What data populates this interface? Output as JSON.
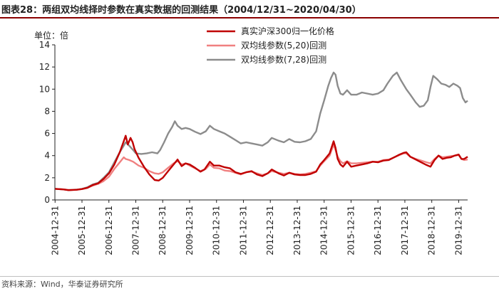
{
  "title": "图表28：两组双均线择时参数在真实数据的回测结果（2004/12/31~2020/04/30）",
  "source": "资料来源：Wind，华泰证券研究所",
  "chart_data": {
    "type": "line",
    "unit_label": "单位：倍",
    "ylim": [
      0,
      14
    ],
    "yticks": [
      0,
      2,
      4,
      6,
      8,
      10,
      12,
      14
    ],
    "xlim": [
      2004.99,
      2020.33
    ],
    "xticks": [
      "2004-12-31",
      "2005-12-31",
      "2006-12-31",
      "2007-12-31",
      "2008-12-31",
      "2009-12-31",
      "2010-12-31",
      "2011-12-31",
      "2012-12-31",
      "2013-12-31",
      "2014-12-31",
      "2015-12-31",
      "2016-12-31",
      "2017-12-31",
      "2018-12-31",
      "2019-12-31"
    ],
    "legend_position": "top-right",
    "series": [
      {
        "name": "真实沪深300归一化价格",
        "color": "#c00000",
        "width": 2.4,
        "points": [
          [
            2005.0,
            1.0
          ],
          [
            2005.3,
            0.95
          ],
          [
            2005.5,
            0.88
          ],
          [
            2005.8,
            0.92
          ],
          [
            2006.0,
            0.98
          ],
          [
            2006.2,
            1.1
          ],
          [
            2006.4,
            1.35
          ],
          [
            2006.6,
            1.5
          ],
          [
            2006.8,
            1.9
          ],
          [
            2007.0,
            2.4
          ],
          [
            2007.2,
            3.2
          ],
          [
            2007.4,
            4.3
          ],
          [
            2007.55,
            5.3
          ],
          [
            2007.62,
            5.8
          ],
          [
            2007.7,
            5.0
          ],
          [
            2007.8,
            5.6
          ],
          [
            2007.88,
            5.2
          ],
          [
            2007.95,
            4.6
          ],
          [
            2008.1,
            3.8
          ],
          [
            2008.3,
            3.0
          ],
          [
            2008.5,
            2.3
          ],
          [
            2008.7,
            1.8
          ],
          [
            2008.85,
            1.75
          ],
          [
            2009.0,
            2.0
          ],
          [
            2009.2,
            2.6
          ],
          [
            2009.4,
            3.2
          ],
          [
            2009.55,
            3.65
          ],
          [
            2009.7,
            3.05
          ],
          [
            2009.85,
            3.3
          ],
          [
            2010.0,
            3.2
          ],
          [
            2010.2,
            2.9
          ],
          [
            2010.4,
            2.55
          ],
          [
            2010.55,
            2.75
          ],
          [
            2010.75,
            3.45
          ],
          [
            2010.9,
            3.1
          ],
          [
            2011.1,
            3.1
          ],
          [
            2011.3,
            2.95
          ],
          [
            2011.5,
            2.85
          ],
          [
            2011.7,
            2.5
          ],
          [
            2011.9,
            2.35
          ],
          [
            2012.1,
            2.5
          ],
          [
            2012.3,
            2.6
          ],
          [
            2012.5,
            2.3
          ],
          [
            2012.7,
            2.15
          ],
          [
            2012.9,
            2.4
          ],
          [
            2013.05,
            2.75
          ],
          [
            2013.3,
            2.4
          ],
          [
            2013.5,
            2.2
          ],
          [
            2013.7,
            2.45
          ],
          [
            2013.9,
            2.3
          ],
          [
            2014.1,
            2.25
          ],
          [
            2014.3,
            2.25
          ],
          [
            2014.5,
            2.35
          ],
          [
            2014.7,
            2.55
          ],
          [
            2014.85,
            3.2
          ],
          [
            2015.0,
            3.6
          ],
          [
            2015.2,
            4.2
          ],
          [
            2015.35,
            5.3
          ],
          [
            2015.42,
            4.7
          ],
          [
            2015.5,
            3.7
          ],
          [
            2015.6,
            3.2
          ],
          [
            2015.7,
            3.0
          ],
          [
            2015.85,
            3.45
          ],
          [
            2016.0,
            3.0
          ],
          [
            2016.2,
            3.1
          ],
          [
            2016.4,
            3.2
          ],
          [
            2016.6,
            3.3
          ],
          [
            2016.8,
            3.45
          ],
          [
            2017.0,
            3.4
          ],
          [
            2017.2,
            3.55
          ],
          [
            2017.4,
            3.6
          ],
          [
            2017.6,
            3.85
          ],
          [
            2017.8,
            4.1
          ],
          [
            2017.95,
            4.25
          ],
          [
            2018.05,
            4.3
          ],
          [
            2018.2,
            3.9
          ],
          [
            2018.4,
            3.65
          ],
          [
            2018.6,
            3.4
          ],
          [
            2018.8,
            3.15
          ],
          [
            2018.95,
            3.0
          ],
          [
            2019.1,
            3.6
          ],
          [
            2019.25,
            4.0
          ],
          [
            2019.4,
            3.7
          ],
          [
            2019.55,
            3.8
          ],
          [
            2019.7,
            3.85
          ],
          [
            2019.85,
            4.0
          ],
          [
            2020.0,
            4.1
          ],
          [
            2020.1,
            3.7
          ],
          [
            2020.2,
            3.7
          ],
          [
            2020.33,
            3.9
          ]
        ]
      },
      {
        "name": "双均线参数(5,20)回测",
        "color": "#f08080",
        "width": 2.4,
        "points": [
          [
            2005.0,
            1.0
          ],
          [
            2005.3,
            0.95
          ],
          [
            2005.5,
            0.9
          ],
          [
            2005.8,
            0.92
          ],
          [
            2006.0,
            0.98
          ],
          [
            2006.2,
            1.1
          ],
          [
            2006.4,
            1.3
          ],
          [
            2006.6,
            1.45
          ],
          [
            2006.8,
            1.7
          ],
          [
            2007.0,
            2.1
          ],
          [
            2007.2,
            2.8
          ],
          [
            2007.4,
            3.4
          ],
          [
            2007.55,
            3.85
          ],
          [
            2007.62,
            3.7
          ],
          [
            2007.75,
            3.6
          ],
          [
            2007.9,
            3.45
          ],
          [
            2008.1,
            3.1
          ],
          [
            2008.3,
            2.9
          ],
          [
            2008.5,
            2.6
          ],
          [
            2008.7,
            2.4
          ],
          [
            2008.85,
            2.35
          ],
          [
            2009.0,
            2.5
          ],
          [
            2009.2,
            2.9
          ],
          [
            2009.4,
            3.3
          ],
          [
            2009.55,
            3.5
          ],
          [
            2009.7,
            3.2
          ],
          [
            2009.85,
            3.3
          ],
          [
            2010.0,
            3.1
          ],
          [
            2010.2,
            2.85
          ],
          [
            2010.4,
            2.6
          ],
          [
            2010.6,
            2.8
          ],
          [
            2010.75,
            3.2
          ],
          [
            2010.9,
            2.9
          ],
          [
            2011.1,
            2.85
          ],
          [
            2011.3,
            2.65
          ],
          [
            2011.5,
            2.6
          ],
          [
            2011.7,
            2.45
          ],
          [
            2011.9,
            2.3
          ],
          [
            2012.1,
            2.5
          ],
          [
            2012.3,
            2.55
          ],
          [
            2012.5,
            2.4
          ],
          [
            2012.7,
            2.25
          ],
          [
            2012.9,
            2.4
          ],
          [
            2013.05,
            2.6
          ],
          [
            2013.3,
            2.45
          ],
          [
            2013.5,
            2.35
          ],
          [
            2013.7,
            2.45
          ],
          [
            2013.9,
            2.35
          ],
          [
            2014.1,
            2.3
          ],
          [
            2014.3,
            2.35
          ],
          [
            2014.5,
            2.45
          ],
          [
            2014.7,
            2.6
          ],
          [
            2014.85,
            3.1
          ],
          [
            2015.0,
            3.5
          ],
          [
            2015.2,
            4.0
          ],
          [
            2015.35,
            5.0
          ],
          [
            2015.42,
            4.5
          ],
          [
            2015.5,
            3.9
          ],
          [
            2015.6,
            3.5
          ],
          [
            2015.7,
            3.3
          ],
          [
            2015.85,
            3.5
          ],
          [
            2016.0,
            3.3
          ],
          [
            2016.2,
            3.3
          ],
          [
            2016.4,
            3.35
          ],
          [
            2016.6,
            3.4
          ],
          [
            2016.8,
            3.45
          ],
          [
            2017.0,
            3.45
          ],
          [
            2017.2,
            3.6
          ],
          [
            2017.4,
            3.65
          ],
          [
            2017.6,
            3.85
          ],
          [
            2017.8,
            4.05
          ],
          [
            2017.95,
            4.2
          ],
          [
            2018.05,
            4.2
          ],
          [
            2018.2,
            3.9
          ],
          [
            2018.4,
            3.7
          ],
          [
            2018.6,
            3.55
          ],
          [
            2018.8,
            3.4
          ],
          [
            2018.95,
            3.3
          ],
          [
            2019.1,
            3.7
          ],
          [
            2019.25,
            4.0
          ],
          [
            2019.4,
            3.85
          ],
          [
            2019.55,
            3.9
          ],
          [
            2019.7,
            3.95
          ],
          [
            2019.85,
            4.0
          ],
          [
            2020.0,
            4.05
          ],
          [
            2020.1,
            3.7
          ],
          [
            2020.2,
            3.6
          ],
          [
            2020.33,
            3.65
          ]
        ]
      },
      {
        "name": "双均线参数(7,28)回测",
        "color": "#8c8c8c",
        "width": 2.4,
        "points": [
          [
            2005.0,
            1.0
          ],
          [
            2005.3,
            0.95
          ],
          [
            2005.5,
            0.9
          ],
          [
            2005.8,
            0.93
          ],
          [
            2006.0,
            1.0
          ],
          [
            2006.2,
            1.15
          ],
          [
            2006.4,
            1.4
          ],
          [
            2006.6,
            1.55
          ],
          [
            2006.8,
            2.0
          ],
          [
            2007.0,
            2.5
          ],
          [
            2007.2,
            3.4
          ],
          [
            2007.4,
            4.3
          ],
          [
            2007.55,
            4.9
          ],
          [
            2007.62,
            5.2
          ],
          [
            2007.75,
            4.9
          ],
          [
            2007.9,
            4.5
          ],
          [
            2008.0,
            4.2
          ],
          [
            2008.2,
            4.15
          ],
          [
            2008.4,
            4.2
          ],
          [
            2008.6,
            4.3
          ],
          [
            2008.8,
            4.2
          ],
          [
            2008.9,
            4.5
          ],
          [
            2009.05,
            5.2
          ],
          [
            2009.2,
            6.0
          ],
          [
            2009.35,
            6.6
          ],
          [
            2009.45,
            7.1
          ],
          [
            2009.55,
            6.7
          ],
          [
            2009.7,
            6.4
          ],
          [
            2009.85,
            6.5
          ],
          [
            2010.0,
            6.4
          ],
          [
            2010.2,
            6.15
          ],
          [
            2010.4,
            5.95
          ],
          [
            2010.6,
            6.2
          ],
          [
            2010.75,
            6.7
          ],
          [
            2010.9,
            6.4
          ],
          [
            2011.1,
            6.2
          ],
          [
            2011.3,
            6.0
          ],
          [
            2011.5,
            5.7
          ],
          [
            2011.7,
            5.4
          ],
          [
            2011.9,
            5.1
          ],
          [
            2012.1,
            5.2
          ],
          [
            2012.3,
            5.1
          ],
          [
            2012.5,
            5.0
          ],
          [
            2012.7,
            4.9
          ],
          [
            2012.9,
            5.2
          ],
          [
            2013.05,
            5.6
          ],
          [
            2013.3,
            5.35
          ],
          [
            2013.5,
            5.2
          ],
          [
            2013.7,
            5.5
          ],
          [
            2013.9,
            5.25
          ],
          [
            2014.1,
            5.2
          ],
          [
            2014.3,
            5.3
          ],
          [
            2014.5,
            5.5
          ],
          [
            2014.7,
            6.2
          ],
          [
            2014.85,
            7.8
          ],
          [
            2015.0,
            9.0
          ],
          [
            2015.15,
            10.3
          ],
          [
            2015.25,
            11.0
          ],
          [
            2015.35,
            11.5
          ],
          [
            2015.42,
            11.3
          ],
          [
            2015.5,
            10.3
          ],
          [
            2015.6,
            9.6
          ],
          [
            2015.7,
            9.5
          ],
          [
            2015.85,
            9.9
          ],
          [
            2016.0,
            9.5
          ],
          [
            2016.2,
            9.5
          ],
          [
            2016.4,
            9.7
          ],
          [
            2016.6,
            9.6
          ],
          [
            2016.8,
            9.5
          ],
          [
            2017.0,
            9.6
          ],
          [
            2017.2,
            9.9
          ],
          [
            2017.35,
            10.5
          ],
          [
            2017.55,
            11.2
          ],
          [
            2017.7,
            11.5
          ],
          [
            2017.85,
            10.8
          ],
          [
            2017.95,
            10.4
          ],
          [
            2018.05,
            10.0
          ],
          [
            2018.2,
            9.5
          ],
          [
            2018.4,
            8.8
          ],
          [
            2018.55,
            8.4
          ],
          [
            2018.7,
            8.5
          ],
          [
            2018.85,
            9.0
          ],
          [
            2018.95,
            10.2
          ],
          [
            2019.05,
            11.2
          ],
          [
            2019.2,
            10.9
          ],
          [
            2019.35,
            10.5
          ],
          [
            2019.5,
            10.4
          ],
          [
            2019.65,
            10.2
          ],
          [
            2019.8,
            10.5
          ],
          [
            2019.95,
            10.3
          ],
          [
            2020.05,
            10.1
          ],
          [
            2020.15,
            9.2
          ],
          [
            2020.25,
            8.8
          ],
          [
            2020.33,
            8.95
          ]
        ]
      }
    ]
  }
}
